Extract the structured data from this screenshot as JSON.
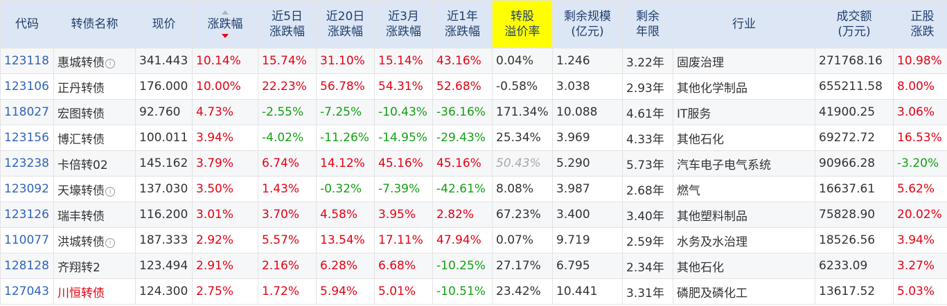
{
  "headers": {
    "code": "代码",
    "name": "转债名称",
    "price": "现价",
    "change": "涨跌幅",
    "d5": [
      "近5日",
      "涨跌幅"
    ],
    "d20": [
      "近20日",
      "涨跌幅"
    ],
    "m3": [
      "近3月",
      "涨跌幅"
    ],
    "y1": [
      "近1年",
      "涨跌幅"
    ],
    "premium": [
      "转股",
      "溢价率"
    ],
    "scale": [
      "剩余规模",
      "(亿元)"
    ],
    "term": [
      "剩余",
      "年限"
    ],
    "industry": "行业",
    "volume": [
      "成交额",
      "(万元)"
    ],
    "stock_change": [
      "正股",
      "涨跌"
    ]
  },
  "colors": {
    "header_bg": "#dde6f4",
    "header_text": "#1f3f6e",
    "highlight": "#ffff00",
    "code": "#2f64b6",
    "up": "#e60012",
    "down": "#13a013"
  },
  "rows": [
    {
      "code": "123118",
      "name": "惠城转债",
      "info": true,
      "price": "341.443",
      "change": "10.14%",
      "d5": "15.74%",
      "d20": "31.10%",
      "m3": "15.14%",
      "y1": "43.16%",
      "premium": "0.04%",
      "scale": "1.246",
      "term": "3.22年",
      "industry": "固废治理",
      "volume": "271768.16",
      "stock_change": "10.98%"
    },
    {
      "code": "123106",
      "name": "正丹转债",
      "info": false,
      "price": "176.000",
      "change": "10.00%",
      "d5": "22.23%",
      "d20": "56.78%",
      "m3": "54.31%",
      "y1": "52.68%",
      "premium": "-0.58%",
      "scale": "3.038",
      "term": "2.93年",
      "industry": "其他化学制品",
      "volume": "655211.58",
      "stock_change": "8.00%"
    },
    {
      "code": "118027",
      "name": "宏图转债",
      "info": false,
      "price": "92.760",
      "change": "4.73%",
      "d5": "-2.55%",
      "d20": "-7.25%",
      "m3": "-10.43%",
      "y1": "-36.16%",
      "premium": "171.34%",
      "scale": "10.088",
      "term": "4.61年",
      "industry": "IT服务",
      "volume": "41900.25",
      "stock_change": "3.06%"
    },
    {
      "code": "123156",
      "name": "博汇转债",
      "info": false,
      "price": "100.011",
      "change": "3.94%",
      "d5": "-4.02%",
      "d20": "-11.26%",
      "m3": "-14.95%",
      "y1": "-29.43%",
      "premium": "25.34%",
      "scale": "3.969",
      "term": "4.33年",
      "industry": "其他石化",
      "volume": "69272.72",
      "stock_change": "16.53%"
    },
    {
      "code": "123238",
      "name": "卡倍转02",
      "info": false,
      "price": "145.162",
      "change": "3.79%",
      "d5": "6.74%",
      "d20": "14.12%",
      "m3": "45.16%",
      "y1": "45.16%",
      "premium": "50.43%",
      "scale": "5.290",
      "term": "5.73年",
      "industry": "汽车电子电气系统",
      "volume": "90966.28",
      "stock_change": "-3.20%"
    },
    {
      "code": "123092",
      "name": "天壕转债",
      "info": true,
      "price": "137.030",
      "change": "3.50%",
      "d5": "1.43%",
      "d20": "-0.32%",
      "m3": "-7.39%",
      "y1": "-42.61%",
      "premium": "8.08%",
      "scale": "3.987",
      "term": "2.68年",
      "industry": "燃气",
      "volume": "16637.61",
      "stock_change": "5.62%"
    },
    {
      "code": "123126",
      "name": "瑞丰转债",
      "info": false,
      "price": "116.200",
      "change": "3.01%",
      "d5": "3.70%",
      "d20": "4.58%",
      "m3": "3.95%",
      "y1": "2.82%",
      "premium": "67.23%",
      "scale": "3.400",
      "term": "3.40年",
      "industry": "其他塑料制品",
      "volume": "75828.90",
      "stock_change": "20.02%"
    },
    {
      "code": "110077",
      "name": "洪城转债",
      "info": true,
      "price": "187.333",
      "change": "2.92%",
      "d5": "5.57%",
      "d20": "13.54%",
      "m3": "17.11%",
      "y1": "47.94%",
      "premium": "0.07%",
      "scale": "9.719",
      "term": "2.59年",
      "industry": "水务及水治理",
      "volume": "18526.56",
      "stock_change": "3.94%"
    },
    {
      "code": "128128",
      "name": "齐翔转2",
      "info": false,
      "price": "123.494",
      "change": "2.91%",
      "d5": "2.16%",
      "d20": "6.28%",
      "m3": "6.68%",
      "y1": "-10.25%",
      "premium": "27.17%",
      "scale": "6.795",
      "term": "2.34年",
      "industry": "其他石化",
      "volume": "6233.09",
      "stock_change": "3.27%"
    },
    {
      "code": "127043",
      "name": "川恒转债",
      "info": false,
      "price": "124.300",
      "change": "2.75%",
      "d5": "1.72%",
      "d20": "5.94%",
      "m3": "5.01%",
      "y1": "-10.51%",
      "premium": "23.42%",
      "scale": "10.441",
      "term": "3.31年",
      "industry": "磷肥及磷化工",
      "volume": "13617.52",
      "stock_change": "5.03%"
    }
  ]
}
